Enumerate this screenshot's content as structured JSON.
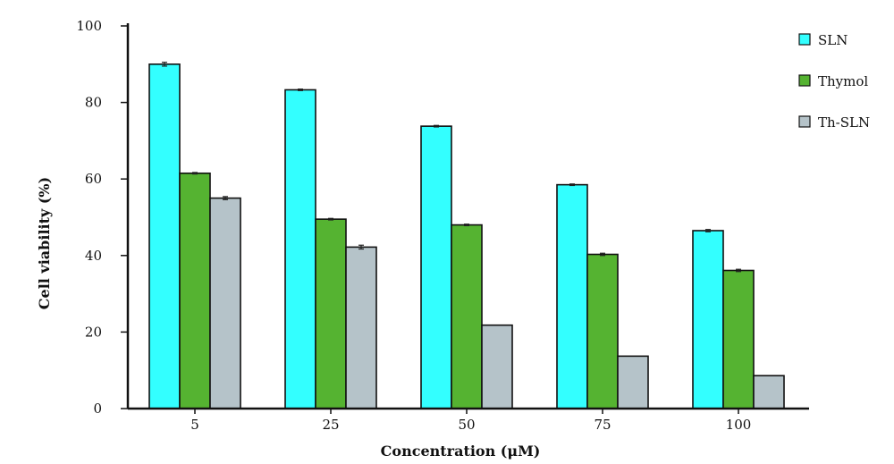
{
  "chart_data": {
    "type": "bar",
    "title": "",
    "xlabel": "Concentration (μM)",
    "ylabel": "Cell viability (%)",
    "categories": [
      "5",
      "25",
      "50",
      "75",
      "100"
    ],
    "yticks": [
      "0",
      "20",
      "40",
      "60",
      "80",
      "100"
    ],
    "ylim": [
      0,
      100
    ],
    "grid": false,
    "legend_position": "top-right",
    "series": [
      {
        "name": "SLN",
        "color": "#33ffff",
        "values": [
          90,
          83.3,
          73.8,
          58.5,
          46.5
        ],
        "errors": [
          0.5,
          0.2,
          0.2,
          0.2,
          0.3
        ]
      },
      {
        "name": "Thymol",
        "color": "#55b331",
        "values": [
          61.5,
          49.5,
          48,
          40.3,
          36.1
        ],
        "errors": [
          0.2,
          0.2,
          0.2,
          0.3,
          0.3
        ]
      },
      {
        "name": "Th-SLN",
        "color": "#b5c3c9",
        "values": [
          55,
          42.2,
          21.8,
          13.7,
          8.6
        ],
        "errors": [
          0.4,
          0.5,
          0,
          0,
          0
        ]
      }
    ]
  }
}
